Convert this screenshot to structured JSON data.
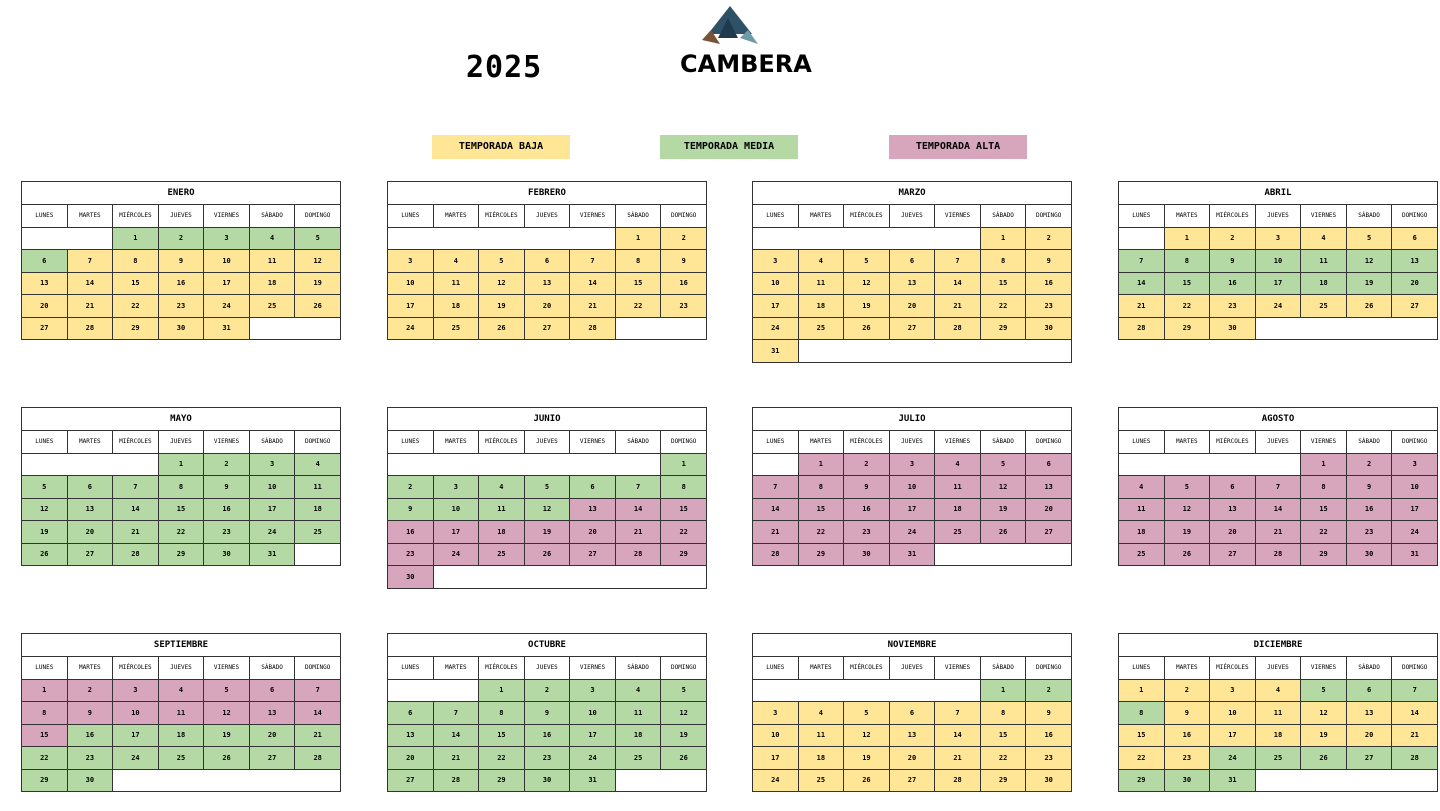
{
  "year": "2025",
  "logo": {
    "text": "CAMBERA"
  },
  "legend": [
    {
      "label": "TEMPORADA BAJA",
      "key": "b"
    },
    {
      "label": "TEMPORADA MEDIA",
      "key": "m"
    },
    {
      "label": "TEMPORADA ALTA",
      "key": "a"
    }
  ],
  "season_colors": {
    "b": "#ffe596",
    "m": "#b5d9a5",
    "a": "#d7a6bd"
  },
  "weekdays": [
    "LUNES",
    "MARTES",
    "MIÉRCOLES",
    "JUEVES",
    "VIERNES",
    "SÁBADO",
    "DOMINGO"
  ],
  "months": [
    {
      "name": "ENERO",
      "offset": 2,
      "days": 31,
      "seasons": "mmmmmmbbbbbbbbbbbbbbbbbbbbbbbbb"
    },
    {
      "name": "FEBRERO",
      "offset": 5,
      "days": 28,
      "seasons": "bbbbbbbbbbbbbbbbbbbbbbbbbbbb"
    },
    {
      "name": "MARZO",
      "offset": 5,
      "days": 31,
      "seasons": "bbbbbbbbbbbbbbbbbbbbbbbbbbbbbbb"
    },
    {
      "name": "ABRIL",
      "offset": 1,
      "days": 30,
      "seasons": "bbbbbbmmmmmmmmmmmmmmbbbbbbbbbb"
    },
    {
      "name": "MAYO",
      "offset": 3,
      "days": 31,
      "seasons": "mmmmmmmmmmmmmmmmmmmmmmmmmmmmmmm"
    },
    {
      "name": "JUNIO",
      "offset": 6,
      "days": 30,
      "seasons": "mmmmmmmmmmmmaaaaaaaaaaaaaaaaaa"
    },
    {
      "name": "JULIO",
      "offset": 1,
      "days": 31,
      "seasons": "aaaaaaaaaaaaaaaaaaaaaaaaaaaaaaa"
    },
    {
      "name": "AGOSTO",
      "offset": 4,
      "days": 31,
      "seasons": "aaaaaaaaaaaaaaaaaaaaaaaaaaaaaaa"
    },
    {
      "name": "SEPTIEMBRE",
      "offset": 0,
      "days": 30,
      "seasons": "aaaaaaaaaaaaaaammmmmmmmmmmmmmm"
    },
    {
      "name": "OCTUBRE",
      "offset": 2,
      "days": 31,
      "seasons": "mmmmmmmmmmmmmmmmmmmmmmmmmmmmmmm"
    },
    {
      "name": "NOVIEMBRE",
      "offset": 5,
      "days": 30,
      "seasons": "mmbbbbbbbbbbbbbbbbbbbbbbbbbbbb"
    },
    {
      "name": "DICIEMBRE",
      "offset": 0,
      "days": 31,
      "seasons": "bbbbmmmmbbbbbbbbbbbbbbbmmmmmmmm"
    }
  ]
}
